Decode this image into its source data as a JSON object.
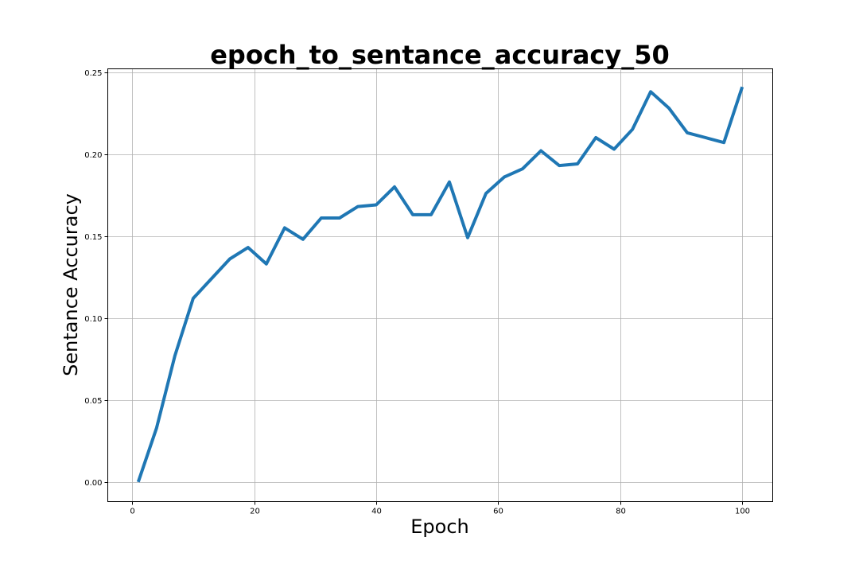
{
  "chart_data": {
    "type": "line",
    "title": "epoch_to_sentance_accuracy_50",
    "xlabel": "Epoch",
    "ylabel": "Sentance Accuracy",
    "xlim": [
      -4,
      105
    ],
    "ylim": [
      -0.012,
      0.252
    ],
    "xticks": [
      0,
      20,
      40,
      60,
      80,
      100
    ],
    "xtick_labels": [
      "0",
      "20",
      "40",
      "60",
      "80",
      "100"
    ],
    "yticks": [
      0.0,
      0.05,
      0.1,
      0.15,
      0.2,
      0.25
    ],
    "ytick_labels": [
      "0.00",
      "0.05",
      "0.10",
      "0.15",
      "0.20",
      "0.25"
    ],
    "grid": true,
    "series": [
      {
        "color": "#1f77b4",
        "x": [
          1,
          4,
          7,
          10,
          13,
          16,
          19,
          22,
          25,
          28,
          31,
          34,
          37,
          40,
          43,
          46,
          49,
          52,
          55,
          58,
          61,
          64,
          67,
          70,
          73,
          76,
          79,
          82,
          85,
          88,
          91,
          94,
          97,
          100
        ],
        "y": [
          0.0,
          0.033,
          0.077,
          0.112,
          0.124,
          0.136,
          0.143,
          0.133,
          0.155,
          0.148,
          0.161,
          0.161,
          0.168,
          0.169,
          0.18,
          0.163,
          0.163,
          0.183,
          0.149,
          0.176,
          0.186,
          0.191,
          0.202,
          0.193,
          0.194,
          0.21,
          0.203,
          0.215,
          0.238,
          0.228,
          0.213,
          0.21,
          0.207,
          0.241
        ]
      }
    ]
  }
}
